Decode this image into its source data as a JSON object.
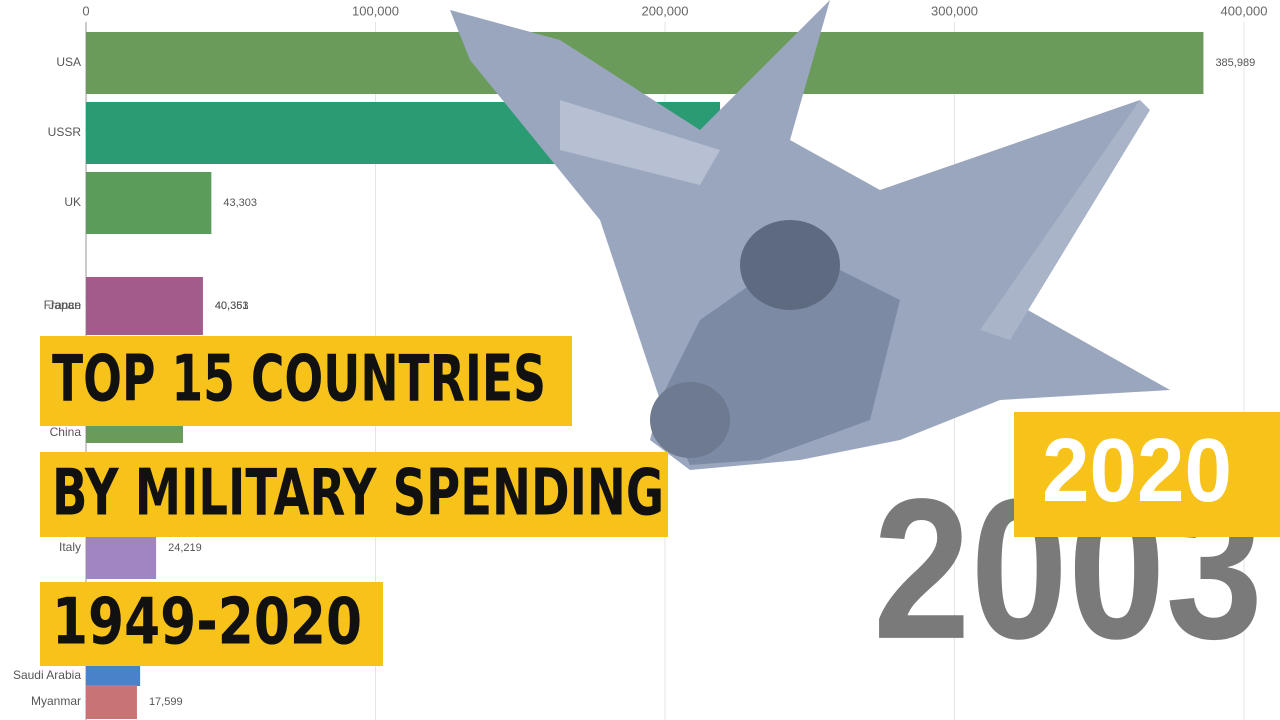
{
  "chart_data": {
    "type": "bar",
    "orientation": "horizontal",
    "annotations": [
      "TOP 15 COUNTRIES",
      "BY MILITARY SPENDING",
      "1949-2020",
      "2020",
      "2003"
    ],
    "categories": [
      "USA",
      "USSR",
      "UK",
      "France",
      "Japan",
      "China",
      "Italy",
      "Saudi Arabia",
      "Myanmar"
    ],
    "values": [
      385989,
      219000,
      43303,
      40363,
      40351,
      33500,
      24219,
      18700,
      17599
    ],
    "value_labels": [
      "385,989",
      null,
      "43,303",
      "40,363",
      "40,351",
      null,
      "24,219",
      null,
      "17,599"
    ],
    "colors": [
      "#6a9b5b",
      "#2a9b73",
      "#5c9c5a",
      "#b0588a",
      "#a35b8c",
      "#6a9b5b",
      "#a184c2",
      "#4a82c9",
      "#c97474"
    ],
    "xlim": [
      0,
      400000
    ],
    "xticks": [
      0,
      {
        "value": 100000,
        "label": "100,000"
      },
      {
        "value": 200000,
        "label": "200,000"
      },
      {
        "value": 300000,
        "label": "300,000"
      },
      {
        "value": 400000,
        "label": "400,000"
      }
    ],
    "grid": true
  }
}
